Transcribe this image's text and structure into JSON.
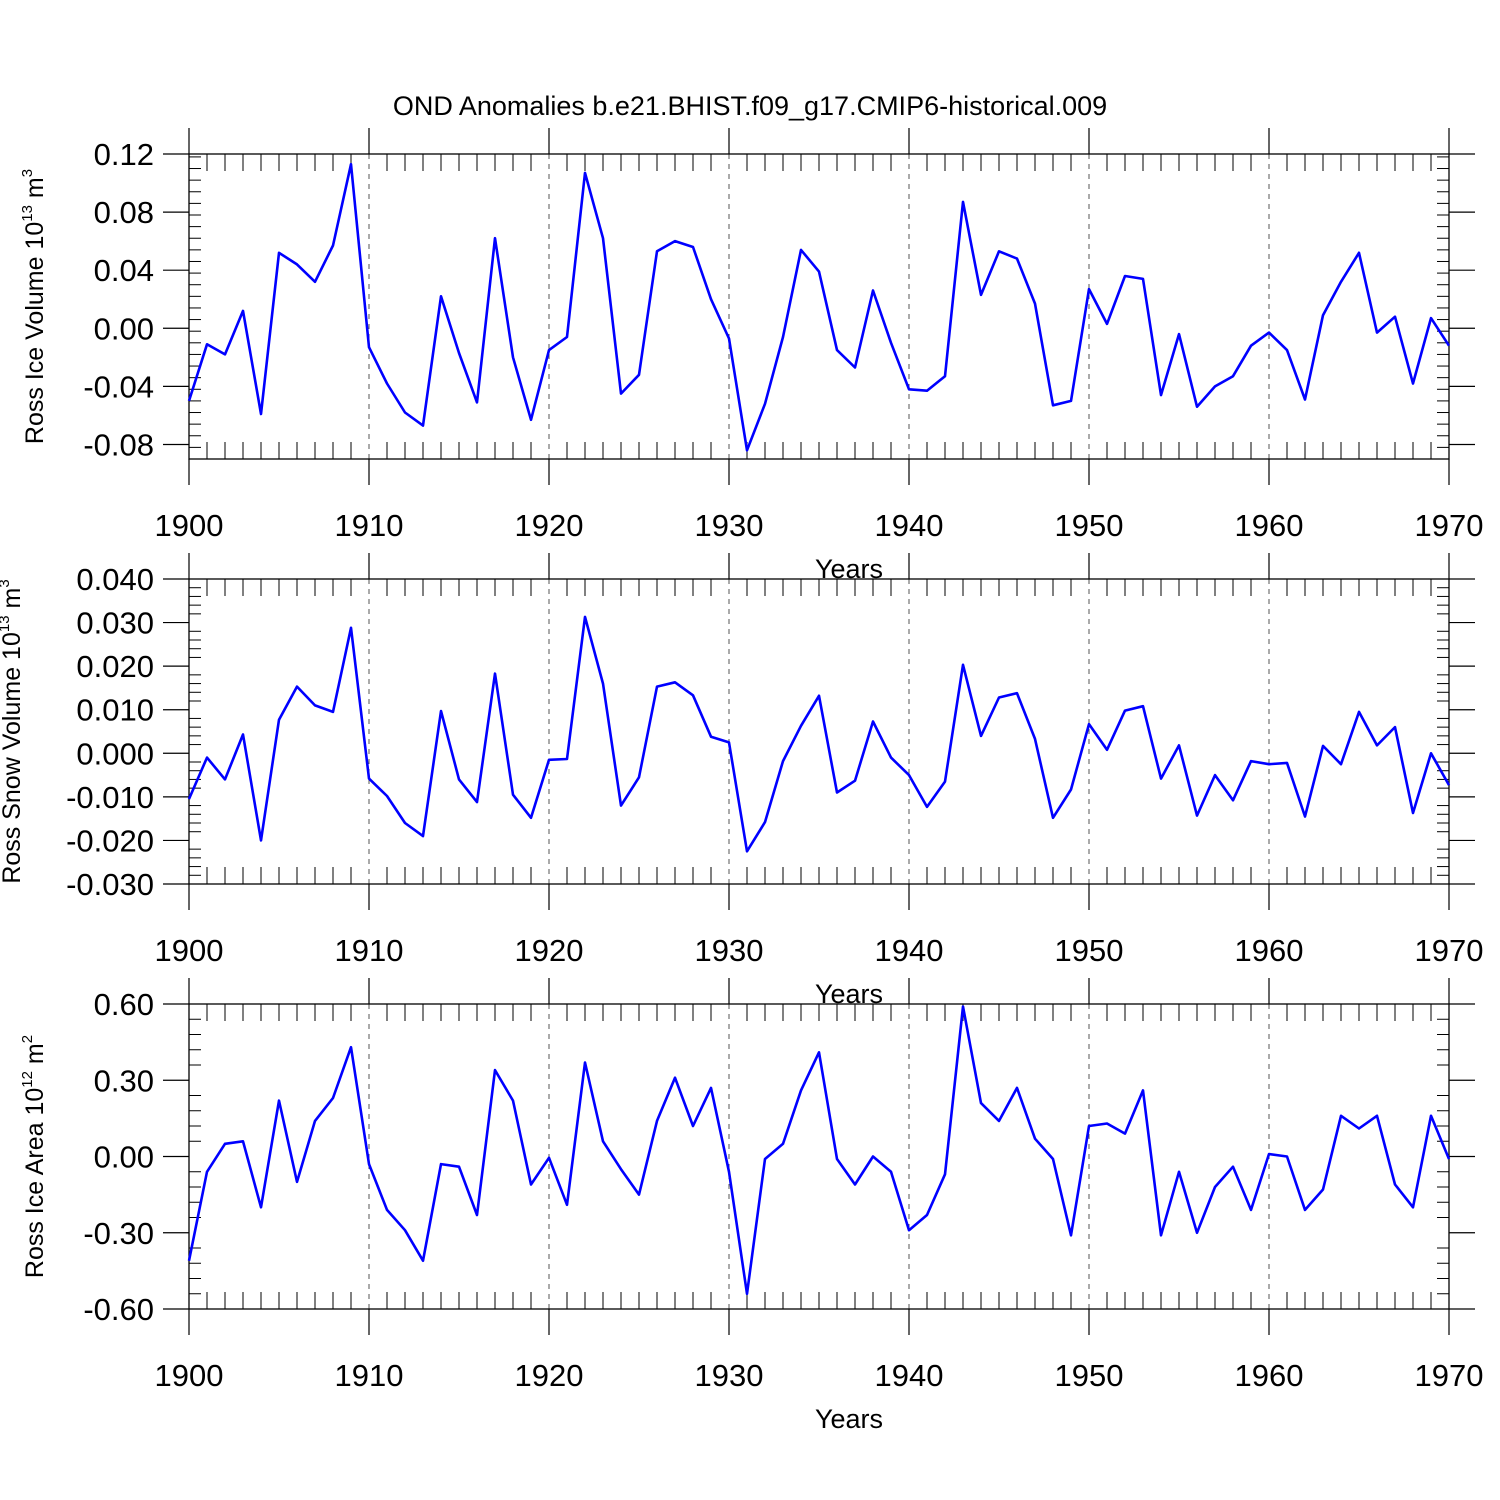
{
  "title": "OND Anomalies b.e21.BHIST.f09_g17.CMIP6-historical.009",
  "colors": {
    "series": "#0000ff",
    "axes": "#000000",
    "grid": "#555555"
  },
  "chart_data": [
    {
      "type": "line",
      "ylabel": "Ross Ice Volume 10",
      "ylabel_exp": "13",
      "ylabel_unit": " m",
      "ylabel_unit_exp": "3",
      "xlabel": "Years",
      "xlim": [
        1900,
        1970
      ],
      "ylim": [
        -0.09,
        0.12
      ],
      "xticks": [
        1900,
        1910,
        1920,
        1930,
        1940,
        1950,
        1960,
        1970
      ],
      "xtick_labels": [
        "1900",
        "1910",
        "1920",
        "1930",
        "1940",
        "1950",
        "1960",
        "1970"
      ],
      "yticks": [
        -0.08,
        -0.04,
        0.0,
        0.04,
        0.08,
        0.12
      ],
      "ytick_labels": [
        "-0.08",
        "-0.04",
        "0.00",
        "0.04",
        "0.08",
        "0.12"
      ],
      "grid": "vertical dashed lines at 1910-1960",
      "x": [
        1900,
        1901,
        1902,
        1903,
        1904,
        1905,
        1906,
        1907,
        1908,
        1909,
        1910,
        1911,
        1912,
        1913,
        1914,
        1915,
        1916,
        1917,
        1918,
        1919,
        1920,
        1921,
        1922,
        1923,
        1924,
        1925,
        1926,
        1927,
        1928,
        1929,
        1930,
        1931,
        1932,
        1933,
        1934,
        1935,
        1936,
        1937,
        1938,
        1939,
        1940,
        1941,
        1942,
        1943,
        1944,
        1945,
        1946,
        1947,
        1948,
        1949,
        1950,
        1951,
        1952,
        1953,
        1954,
        1955,
        1956,
        1957,
        1958,
        1959,
        1960,
        1961,
        1962,
        1963,
        1964,
        1965,
        1966,
        1967,
        1968,
        1969,
        1970
      ],
      "values": [
        -0.05,
        -0.011,
        -0.018,
        0.012,
        -0.059,
        0.052,
        0.044,
        0.032,
        0.057,
        0.113,
        -0.013,
        -0.038,
        -0.058,
        -0.067,
        0.022,
        -0.017,
        -0.051,
        0.062,
        -0.02,
        -0.063,
        -0.015,
        -0.006,
        0.107,
        0.062,
        -0.045,
        -0.032,
        0.053,
        0.06,
        0.056,
        0.02,
        -0.007,
        -0.084,
        -0.052,
        -0.006,
        0.054,
        0.039,
        -0.015,
        -0.027,
        0.026,
        -0.01,
        -0.042,
        -0.043,
        -0.033,
        0.087,
        0.023,
        0.053,
        0.048,
        0.017,
        -0.053,
        -0.05,
        0.027,
        0.003,
        0.036,
        0.034,
        -0.046,
        -0.004,
        -0.054,
        -0.04,
        -0.033,
        -0.012,
        -0.003,
        -0.015,
        -0.049,
        0.009,
        0.032,
        0.052,
        -0.003,
        0.008,
        -0.038,
        0.007,
        -0.012
      ]
    },
    {
      "type": "line",
      "ylabel": "Ross Snow Volume 10",
      "ylabel_exp": "13",
      "ylabel_unit": " m",
      "ylabel_unit_exp": "3",
      "xlabel": "Years",
      "xlim": [
        1900,
        1970
      ],
      "ylim": [
        -0.03,
        0.04
      ],
      "xticks": [
        1900,
        1910,
        1920,
        1930,
        1940,
        1950,
        1960,
        1970
      ],
      "xtick_labels": [
        "1900",
        "1910",
        "1920",
        "1930",
        "1940",
        "1950",
        "1960",
        "1970"
      ],
      "yticks": [
        -0.03,
        -0.02,
        -0.01,
        0.0,
        0.01,
        0.02,
        0.03,
        0.04
      ],
      "ytick_labels": [
        "-0.030",
        "-0.020",
        "-0.010",
        "0.000",
        "0.010",
        "0.020",
        "0.030",
        "0.040"
      ],
      "grid": "vertical dashed lines at 1910-1960",
      "x": [
        1900,
        1901,
        1902,
        1903,
        1904,
        1905,
        1906,
        1907,
        1908,
        1909,
        1910,
        1911,
        1912,
        1913,
        1914,
        1915,
        1916,
        1917,
        1918,
        1919,
        1920,
        1921,
        1922,
        1923,
        1924,
        1925,
        1926,
        1927,
        1928,
        1929,
        1930,
        1931,
        1932,
        1933,
        1934,
        1935,
        1936,
        1937,
        1938,
        1939,
        1940,
        1941,
        1942,
        1943,
        1944,
        1945,
        1946,
        1947,
        1948,
        1949,
        1950,
        1951,
        1952,
        1953,
        1954,
        1955,
        1956,
        1957,
        1958,
        1959,
        1960,
        1961,
        1962,
        1963,
        1964,
        1965,
        1966,
        1967,
        1968,
        1969,
        1970
      ],
      "values": [
        -0.0105,
        -0.001,
        -0.006,
        0.0043,
        -0.02,
        0.0077,
        0.0153,
        0.011,
        0.0095,
        0.0288,
        -0.0058,
        -0.0098,
        -0.016,
        -0.019,
        0.0097,
        -0.006,
        -0.0112,
        0.0183,
        -0.0095,
        -0.0148,
        -0.0015,
        -0.0013,
        0.0313,
        0.016,
        -0.012,
        -0.0055,
        0.0153,
        0.0163,
        0.0133,
        0.0038,
        0.0025,
        -0.0225,
        -0.0158,
        -0.0018,
        0.0063,
        0.0132,
        -0.009,
        -0.0063,
        0.0073,
        -0.001,
        -0.005,
        -0.0123,
        -0.0065,
        0.0203,
        0.004,
        0.0128,
        0.0138,
        0.0033,
        -0.0148,
        -0.0083,
        0.0067,
        0.0008,
        0.0098,
        0.0108,
        -0.0058,
        0.0018,
        -0.0143,
        -0.005,
        -0.0108,
        -0.0018,
        -0.0025,
        -0.0022,
        -0.0145,
        0.0017,
        -0.0025,
        0.0095,
        0.0018,
        0.006,
        -0.0137,
        0.0,
        -0.0073
      ]
    },
    {
      "type": "line",
      "ylabel": "Ross Ice Area 10",
      "ylabel_exp": "12",
      "ylabel_unit": " m",
      "ylabel_unit_exp": "2",
      "xlabel": "Years",
      "xlim": [
        1900,
        1970
      ],
      "ylim": [
        -0.6,
        0.6
      ],
      "xticks": [
        1900,
        1910,
        1920,
        1930,
        1940,
        1950,
        1960,
        1970
      ],
      "xtick_labels": [
        "1900",
        "1910",
        "1920",
        "1930",
        "1940",
        "1950",
        "1960",
        "1970"
      ],
      "yticks": [
        -0.6,
        -0.3,
        0.0,
        0.3,
        0.6
      ],
      "ytick_labels": [
        "-0.60",
        "-0.30",
        "0.00",
        "0.30",
        "0.60"
      ],
      "grid": "vertical dashed lines at 1910-1960",
      "x": [
        1900,
        1901,
        1902,
        1903,
        1904,
        1905,
        1906,
        1907,
        1908,
        1909,
        1910,
        1911,
        1912,
        1913,
        1914,
        1915,
        1916,
        1917,
        1918,
        1919,
        1920,
        1921,
        1922,
        1923,
        1924,
        1925,
        1926,
        1927,
        1928,
        1929,
        1930,
        1931,
        1932,
        1933,
        1934,
        1935,
        1936,
        1937,
        1938,
        1939,
        1940,
        1941,
        1942,
        1943,
        1944,
        1945,
        1946,
        1947,
        1948,
        1949,
        1950,
        1951,
        1952,
        1953,
        1954,
        1955,
        1956,
        1957,
        1958,
        1959,
        1960,
        1961,
        1962,
        1963,
        1964,
        1965,
        1966,
        1967,
        1968,
        1969,
        1970
      ],
      "values": [
        -0.41,
        -0.06,
        0.05,
        0.06,
        -0.2,
        0.22,
        -0.1,
        0.14,
        0.23,
        0.43,
        -0.03,
        -0.21,
        -0.29,
        -0.41,
        -0.03,
        -0.04,
        -0.23,
        0.34,
        0.22,
        -0.11,
        -0.005,
        -0.19,
        0.37,
        0.06,
        -0.05,
        -0.15,
        0.14,
        0.31,
        0.12,
        0.27,
        -0.06,
        -0.54,
        -0.01,
        0.05,
        0.26,
        0.41,
        -0.01,
        -0.11,
        0.0,
        -0.06,
        -0.29,
        -0.23,
        -0.07,
        0.59,
        0.21,
        0.14,
        0.27,
        0.07,
        -0.01,
        -0.31,
        0.12,
        0.13,
        0.09,
        0.26,
        -0.31,
        -0.06,
        -0.3,
        -0.12,
        -0.04,
        -0.21,
        0.01,
        0.0,
        -0.21,
        -0.13,
        0.16,
        0.11,
        0.16,
        -0.11,
        -0.2,
        0.16,
        -0.01
      ]
    }
  ]
}
